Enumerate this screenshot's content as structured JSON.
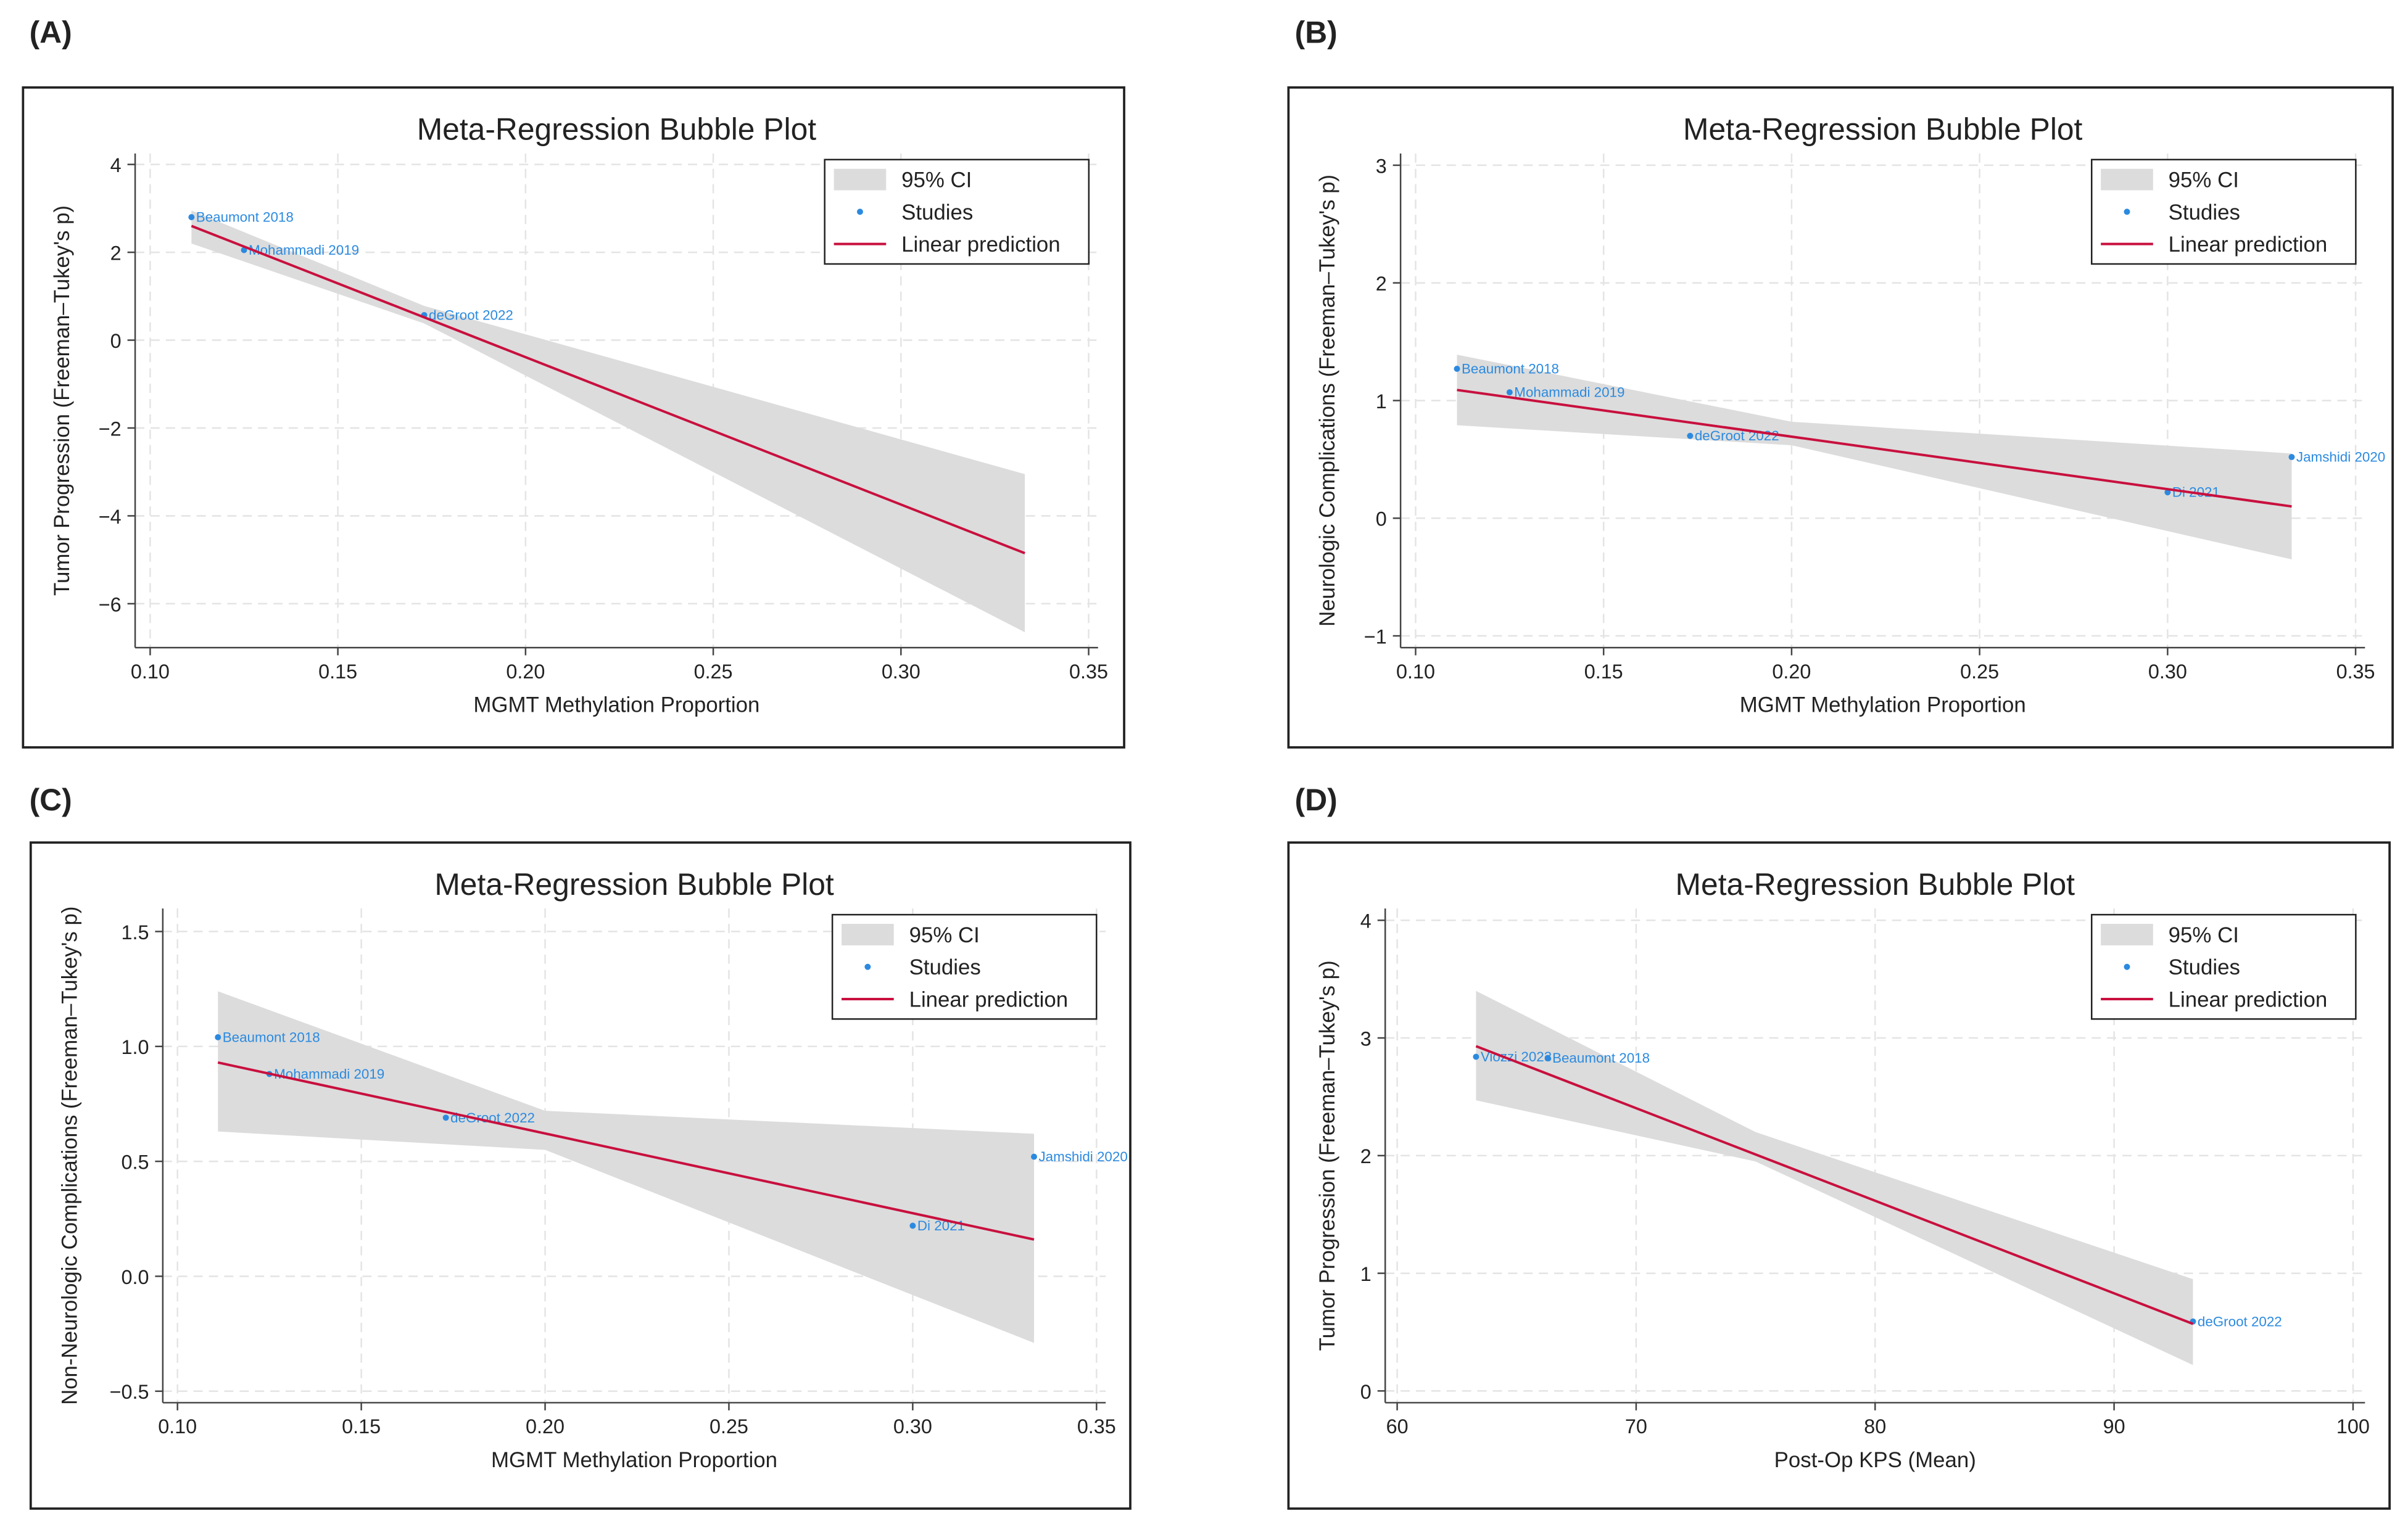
{
  "chart_data": [
    {
      "type": "scatter",
      "panel": "(A)",
      "title": "Meta-Regression Bubble Plot",
      "x_label": "MGMT Methylation Proportion",
      "y_label": "Tumor Progression (Freeman–Tukey's p)",
      "xlim": [
        0.096,
        0.3525
      ],
      "ylim": [
        -7,
        4.25
      ],
      "xticks": [
        {
          "value": 0.1,
          "label": "0.10"
        },
        0.15,
        {
          "value": 0.2,
          "label": "0.20"
        },
        0.25,
        {
          "value": 0.3,
          "label": "0.30"
        },
        0.35
      ],
      "yticks": [
        {
          "value": -6,
          "label": "−6"
        },
        {
          "value": -4,
          "label": "−4"
        },
        {
          "value": -2,
          "label": "−2"
        },
        0,
        2,
        4
      ],
      "grid": true,
      "legend_position": "upper right",
      "series": [
        {
          "name": "95% CI",
          "color": "#dcdcdc",
          "x": [
            0.111,
            0.173,
            0.333
          ],
          "lower": [
            2.2,
            0.38,
            -6.65
          ],
          "upper": [
            2.95,
            0.78,
            -3.05
          ]
        },
        {
          "name": "Studies",
          "color": "#2b8ae0",
          "x": [
            0.111,
            0.125,
            0.173
          ],
          "values": [
            2.8,
            2.05,
            0.57
          ],
          "labels": [
            "Beaumont 2018",
            "Mohammadi 2019",
            "deGroot 2022"
          ]
        },
        {
          "name": "Linear prediction",
          "color": "#c8103e",
          "x": [
            0.111,
            0.333
          ],
          "values": [
            2.6,
            -4.85
          ]
        }
      ]
    },
    {
      "type": "scatter",
      "panel": "(B)",
      "title": "Meta-Regression Bubble Plot",
      "x_label": "MGMT Methylation Proportion",
      "y_label": "Neurologic Complications (Freeman–Tukey's p)",
      "xlim": [
        0.096,
        0.3525
      ],
      "ylim": [
        -1.1,
        3.1
      ],
      "xticks": [
        {
          "value": 0.1,
          "label": "0.10"
        },
        0.15,
        {
          "value": 0.2,
          "label": "0.20"
        },
        0.25,
        {
          "value": 0.3,
          "label": "0.30"
        },
        0.35
      ],
      "yticks": [
        {
          "value": -1,
          "label": "−1"
        },
        0,
        1,
        2,
        3
      ],
      "grid": true,
      "legend_position": "upper right",
      "series": [
        {
          "name": "95% CI",
          "color": "#dcdcdc",
          "x": [
            0.111,
            0.2,
            0.333
          ],
          "lower": [
            0.79,
            0.62,
            -0.35
          ],
          "upper": [
            1.39,
            0.82,
            0.55
          ]
        },
        {
          "name": "Studies",
          "color": "#2b8ae0",
          "x": [
            0.111,
            0.125,
            0.173,
            0.3,
            0.333
          ],
          "values": [
            1.27,
            1.07,
            0.7,
            0.22,
            0.52
          ],
          "labels": [
            "Beaumont 2018",
            "Mohammadi 2019",
            "deGroot 2022",
            "Di 2021",
            "Jamshidi 2020"
          ]
        },
        {
          "name": "Linear prediction",
          "color": "#c8103e",
          "x": [
            0.111,
            0.333
          ],
          "values": [
            1.09,
            0.1
          ]
        }
      ]
    },
    {
      "type": "scatter",
      "panel": "(C)",
      "title": "Meta-Regression Bubble Plot",
      "x_label": "MGMT Methylation Proportion",
      "y_label": "Non-Neurologic Complications (Freeman–Tukey's p)",
      "xlim": [
        0.096,
        0.3525
      ],
      "ylim": [
        -0.55,
        1.6
      ],
      "xticks": [
        {
          "value": 0.1,
          "label": "0.10"
        },
        0.15,
        {
          "value": 0.2,
          "label": "0.20"
        },
        0.25,
        {
          "value": 0.3,
          "label": "0.30"
        },
        0.35
      ],
      "yticks": [
        {
          "value": -0.5,
          "label": "−0.5"
        },
        {
          "value": 0,
          "label": "0.0"
        },
        0.5,
        {
          "value": 1,
          "label": "1.0"
        },
        1.5
      ],
      "grid": true,
      "legend_position": "upper right",
      "series": [
        {
          "name": "95% CI",
          "color": "#dcdcdc",
          "x": [
            0.111,
            0.2,
            0.333
          ],
          "lower": [
            0.63,
            0.55,
            -0.29
          ],
          "upper": [
            1.24,
            0.72,
            0.62
          ]
        },
        {
          "name": "Studies",
          "color": "#2b8ae0",
          "x": [
            0.111,
            0.125,
            0.173,
            0.3,
            0.333
          ],
          "values": [
            1.04,
            0.88,
            0.69,
            0.22,
            0.52
          ],
          "labels": [
            "Beaumont 2018",
            "Mohammadi 2019",
            "deGroot 2022",
            "Di 2021",
            "Jamshidi 2020"
          ]
        },
        {
          "name": "Linear prediction",
          "color": "#c8103e",
          "x": [
            0.111,
            0.333
          ],
          "values": [
            0.93,
            0.16
          ]
        }
      ]
    },
    {
      "type": "scatter",
      "panel": "(D)",
      "title": "Meta-Regression Bubble Plot",
      "x_label": "Post-Op KPS (Mean)",
      "y_label": "Tumor Progression (Freeman–Tukey's p)",
      "xlim": [
        59.5,
        100.5
      ],
      "ylim": [
        -0.1,
        4.1
      ],
      "xticks": [
        60,
        70,
        80,
        90,
        100
      ],
      "yticks": [
        0,
        1,
        2,
        3,
        4
      ],
      "grid": true,
      "legend_position": "upper right",
      "series": [
        {
          "name": "95% CI",
          "color": "#dcdcdc",
          "x": [
            63.3,
            75,
            93.3
          ],
          "lower": [
            2.47,
            1.95,
            0.22
          ],
          "upper": [
            3.4,
            2.2,
            0.95
          ]
        },
        {
          "name": "Studies",
          "color": "#2b8ae0",
          "x": [
            63.3,
            66.3,
            93.3
          ],
          "values": [
            2.84,
            2.83,
            0.59
          ],
          "labels": [
            "Viozzi 2023",
            "Beaumont 2018",
            "deGroot 2022"
          ]
        },
        {
          "name": "Linear prediction",
          "color": "#c8103e",
          "x": [
            63.3,
            93.3
          ],
          "values": [
            2.93,
            0.57
          ]
        }
      ]
    }
  ]
}
